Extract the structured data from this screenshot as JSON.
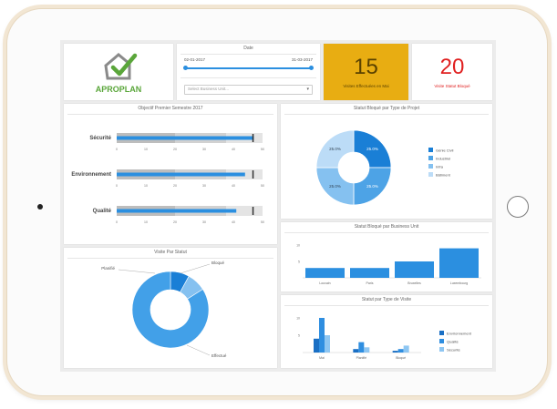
{
  "brand": {
    "name": "APROPLAN"
  },
  "date_panel": {
    "title": "Date",
    "start": "02-01-2017",
    "end": "31-03-2017",
    "select_placeholder": "Select Business Unit..."
  },
  "kpis": [
    {
      "value": "15",
      "label": "Visites Effectuées en Mai",
      "bg": "#e8ad12",
      "color": "#5a4200"
    },
    {
      "value": "20",
      "label": "Visite Statut Bloqué",
      "bg": "#ffffff",
      "color": "#e02020"
    }
  ],
  "objectifs": {
    "title": "Objectif Premier Semestre 2017",
    "rows": [
      {
        "label": "Sécurité",
        "value": 47,
        "ticks": [
          "0",
          "10",
          "20",
          "30",
          "40",
          "50"
        ]
      },
      {
        "label": "Environnement",
        "value": 44,
        "ticks": [
          "0",
          "10",
          "20",
          "30",
          "40",
          "50"
        ]
      },
      {
        "label": "Qualité",
        "value": 41,
        "ticks": [
          "0",
          "10",
          "20",
          "30",
          "40",
          "50"
        ]
      }
    ]
  },
  "statut_projet": {
    "title": "Statut Bloqué par Type de Projet",
    "slices": [
      {
        "label": "Génie Civil",
        "pct": 25.0,
        "display": "25.0%",
        "color": "#1a7fd6"
      },
      {
        "label": "Industriel",
        "pct": 25.0,
        "display": "25.0%",
        "color": "#4da3e6"
      },
      {
        "label": "Infra",
        "pct": 25.0,
        "display": "25.0%",
        "color": "#85c1f0"
      },
      {
        "label": "Bâtiment",
        "pct": 25.0,
        "display": "25.0%",
        "color": "#bcdcf7"
      }
    ]
  },
  "visite_statut": {
    "title": "Visite Par Statut",
    "slices": [
      {
        "label": "Bloqué",
        "pct": 8,
        "color": "#1a7fd6"
      },
      {
        "label": "Planifié",
        "pct": 8,
        "color": "#85c1f0"
      },
      {
        "label": "Effectué",
        "pct": 84,
        "color": "#42a0e8"
      }
    ],
    "labels": {
      "top_left": "Planifié",
      "top_right": "Bloqué",
      "bottom": "Effectué"
    }
  },
  "business_unit": {
    "title": "Statut Bloqué par Business Unit",
    "y_ticks": [
      "10",
      "5"
    ],
    "categories": [
      "Louvain",
      "Paris",
      "Bruxelles",
      "Luxembourg"
    ],
    "values": [
      3,
      3,
      5,
      9
    ]
  },
  "type_visite": {
    "title": "Statut par Type de Visite",
    "y_ticks": [
      "10",
      "5"
    ],
    "categories": [
      "Mai",
      "Planifié",
      "Bloqué"
    ],
    "series": [
      {
        "name": "Environnement",
        "values": [
          4,
          1,
          0.5
        ],
        "color": "#1a6fc4"
      },
      {
        "name": "Qualité",
        "values": [
          10,
          3,
          1
        ],
        "color": "#2f8ee0"
      },
      {
        "name": "Sécurité",
        "values": [
          5,
          1.5,
          2
        ],
        "color": "#8ec6f2"
      }
    ]
  }
}
